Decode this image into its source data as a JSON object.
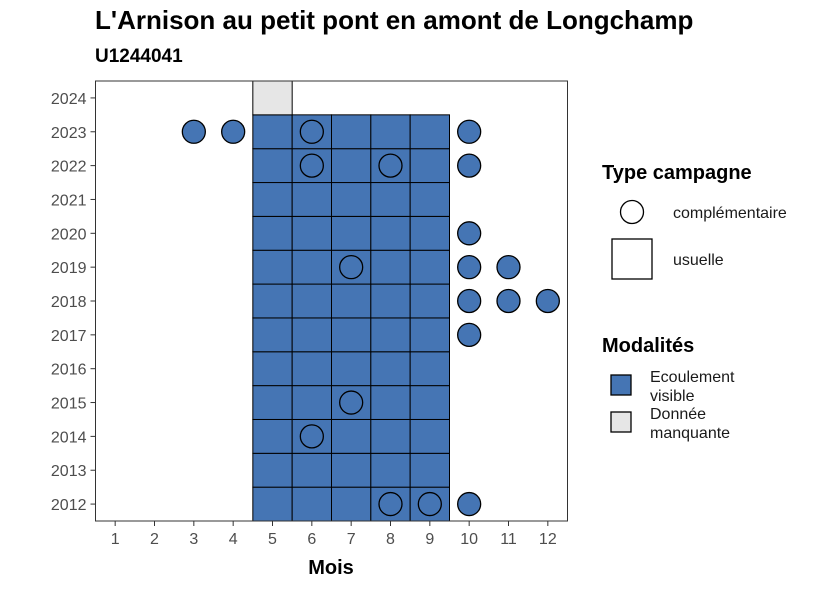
{
  "chart_data": {
    "type": "heatmap",
    "title": "L'Arnison au petit pont en amont de Longchamp",
    "subtitle": "U1244041",
    "xlabel": "Mois",
    "ylabel": "",
    "x_ticks": [
      "1",
      "2",
      "3",
      "4",
      "5",
      "6",
      "7",
      "8",
      "9",
      "10",
      "11",
      "12"
    ],
    "y_ticks": [
      "2012",
      "2013",
      "2014",
      "2015",
      "2016",
      "2017",
      "2018",
      "2019",
      "2020",
      "2021",
      "2022",
      "2023",
      "2024"
    ],
    "xlim": [
      0.5,
      12.5
    ],
    "ylim": [
      2011.5,
      2024.5
    ],
    "tiles": [
      {
        "year": 2012,
        "months": [
          5,
          6,
          7,
          8,
          9
        ],
        "modalite": "Ecoulement visible"
      },
      {
        "year": 2013,
        "months": [
          5,
          6,
          7,
          8,
          9
        ],
        "modalite": "Ecoulement visible"
      },
      {
        "year": 2014,
        "months": [
          5,
          6,
          7,
          8,
          9
        ],
        "modalite": "Ecoulement visible"
      },
      {
        "year": 2015,
        "months": [
          5,
          6,
          7,
          8,
          9
        ],
        "modalite": "Ecoulement visible"
      },
      {
        "year": 2016,
        "months": [
          5,
          6,
          7,
          8,
          9
        ],
        "modalite": "Ecoulement visible"
      },
      {
        "year": 2017,
        "months": [
          5,
          6,
          7,
          8,
          9
        ],
        "modalite": "Ecoulement visible"
      },
      {
        "year": 2018,
        "months": [
          5,
          6,
          7,
          8,
          9
        ],
        "modalite": "Ecoulement visible"
      },
      {
        "year": 2019,
        "months": [
          5,
          6,
          7,
          8,
          9
        ],
        "modalite": "Ecoulement visible"
      },
      {
        "year": 2020,
        "months": [
          5,
          6,
          7,
          8,
          9
        ],
        "modalite": "Ecoulement visible"
      },
      {
        "year": 2021,
        "months": [
          5,
          6,
          7,
          8,
          9
        ],
        "modalite": "Ecoulement visible"
      },
      {
        "year": 2022,
        "months": [
          5,
          6,
          7,
          8,
          9
        ],
        "modalite": "Ecoulement visible"
      },
      {
        "year": 2023,
        "months": [
          5,
          6,
          7,
          8,
          9
        ],
        "modalite": "Ecoulement visible"
      },
      {
        "year": 2024,
        "months": [
          5
        ],
        "modalite": "Donnée manquante"
      }
    ],
    "points": [
      {
        "year": 2012,
        "month": 8,
        "modalite": "Ecoulement visible"
      },
      {
        "year": 2012,
        "month": 9,
        "modalite": "Ecoulement visible"
      },
      {
        "year": 2012,
        "month": 10,
        "modalite": "Ecoulement visible"
      },
      {
        "year": 2014,
        "month": 6,
        "modalite": "Ecoulement visible"
      },
      {
        "year": 2015,
        "month": 7,
        "modalite": "Ecoulement visible"
      },
      {
        "year": 2017,
        "month": 10,
        "modalite": "Ecoulement visible"
      },
      {
        "year": 2018,
        "month": 10,
        "modalite": "Ecoulement visible"
      },
      {
        "year": 2018,
        "month": 11,
        "modalite": "Ecoulement visible"
      },
      {
        "year": 2018,
        "month": 12,
        "modalite": "Ecoulement visible"
      },
      {
        "year": 2019,
        "month": 7,
        "modalite": "Ecoulement visible"
      },
      {
        "year": 2019,
        "month": 10,
        "modalite": "Ecoulement visible"
      },
      {
        "year": 2019,
        "month": 11,
        "modalite": "Ecoulement visible"
      },
      {
        "year": 2020,
        "month": 10,
        "modalite": "Ecoulement visible"
      },
      {
        "year": 2022,
        "month": 6,
        "modalite": "Ecoulement visible"
      },
      {
        "year": 2022,
        "month": 8,
        "modalite": "Ecoulement visible"
      },
      {
        "year": 2022,
        "month": 10,
        "modalite": "Ecoulement visible"
      },
      {
        "year": 2023,
        "month": 3,
        "modalite": "Ecoulement visible"
      },
      {
        "year": 2023,
        "month": 4,
        "modalite": "Ecoulement visible"
      },
      {
        "year": 2023,
        "month": 6,
        "modalite": "Ecoulement visible"
      },
      {
        "year": 2023,
        "month": 10,
        "modalite": "Ecoulement visible"
      }
    ],
    "legend": {
      "shape_title": "Type campagne",
      "shape_items": [
        {
          "label": "complémentaire",
          "shape": "circle"
        },
        {
          "label": "usuelle",
          "shape": "square"
        }
      ],
      "fill_title": "Modalités",
      "fill_items": [
        {
          "label_lines": [
            "Ecoulement",
            "visible"
          ],
          "color": "#4575b4"
        },
        {
          "label_lines": [
            "Donnée",
            "manquante"
          ],
          "color": "#e6e6e6"
        }
      ],
      "position": "right"
    },
    "colors": {
      "Ecoulement visible": "#4575b4",
      "Donnée manquante": "#e6e6e6"
    },
    "grid": false
  }
}
